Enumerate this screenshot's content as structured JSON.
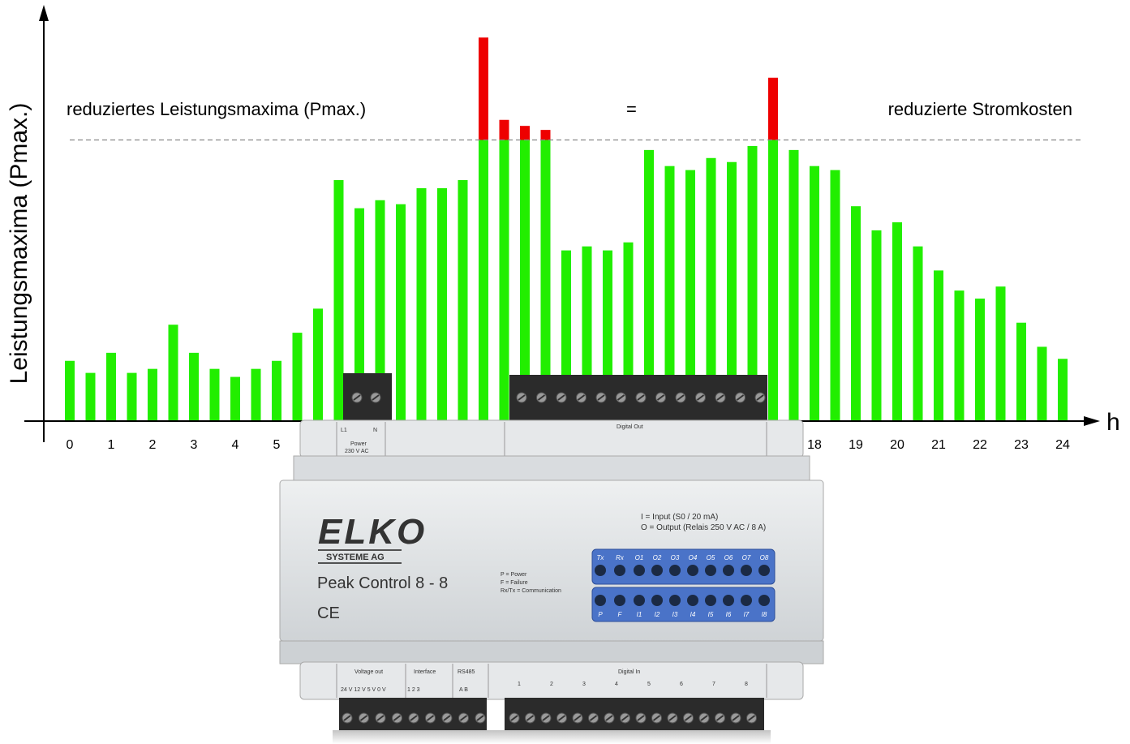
{
  "chart_data": {
    "type": "bar",
    "ylabel": "Leistungsmaxima (Pmax.)",
    "xlabel": "h",
    "annotation_left": "reduziertes Leistungsmaxima (Pmax.)",
    "annotation_equals": "=",
    "annotation_right": "reduzierte Stromkosten",
    "x_ticks": [
      "0",
      "1",
      "2",
      "3",
      "4",
      "5",
      "6",
      "7",
      "8",
      "9",
      "10",
      "11",
      "12",
      "13",
      "14",
      "15",
      "16",
      "17",
      "18",
      "19",
      "20",
      "21",
      "22",
      "23",
      "24"
    ],
    "x_range": [
      0,
      24
    ],
    "ylim": [
      0,
      100
    ],
    "threshold": 70,
    "grid": false,
    "colors": {
      "below": "#22ee00",
      "above": "#ee0000",
      "threshold_line": "#888888"
    },
    "bars": [
      {
        "x": 0,
        "y": 15
      },
      {
        "x": 0.5,
        "y": 12
      },
      {
        "x": 1,
        "y": 17
      },
      {
        "x": 1.5,
        "y": 12
      },
      {
        "x": 2,
        "y": 13
      },
      {
        "x": 2.5,
        "y": 24
      },
      {
        "x": 3,
        "y": 17
      },
      {
        "x": 3.5,
        "y": 13
      },
      {
        "x": 4,
        "y": 11
      },
      {
        "x": 4.5,
        "y": 13
      },
      {
        "x": 5,
        "y": 15
      },
      {
        "x": 5.5,
        "y": 22
      },
      {
        "x": 6,
        "y": 28
      },
      {
        "x": 6.5,
        "y": 60
      },
      {
        "x": 7,
        "y": 53
      },
      {
        "x": 7.5,
        "y": 55
      },
      {
        "x": 8,
        "y": 54
      },
      {
        "x": 8.5,
        "y": 58
      },
      {
        "x": 9,
        "y": 58
      },
      {
        "x": 9.5,
        "y": 60
      },
      {
        "x": 10,
        "y": 95.5
      },
      {
        "x": 10.5,
        "y": 75
      },
      {
        "x": 11,
        "y": 73.5
      },
      {
        "x": 11.5,
        "y": 72.5
      },
      {
        "x": 12,
        "y": 42.5
      },
      {
        "x": 12.5,
        "y": 43.5
      },
      {
        "x": 13,
        "y": 42.5
      },
      {
        "x": 13.5,
        "y": 44.5
      },
      {
        "x": 14,
        "y": 67.5
      },
      {
        "x": 14.5,
        "y": 63.5
      },
      {
        "x": 15,
        "y": 62.5
      },
      {
        "x": 15.5,
        "y": 65.5
      },
      {
        "x": 16,
        "y": 64.5
      },
      {
        "x": 16.5,
        "y": 68.5
      },
      {
        "x": 17,
        "y": 85.5
      },
      {
        "x": 17.5,
        "y": 67.5
      },
      {
        "x": 18,
        "y": 63.5
      },
      {
        "x": 18.5,
        "y": 62.5
      },
      {
        "x": 19,
        "y": 53.5
      },
      {
        "x": 19.5,
        "y": 47.5
      },
      {
        "x": 20,
        "y": 49.5
      },
      {
        "x": 20.5,
        "y": 43.5
      },
      {
        "x": 21,
        "y": 37.5
      },
      {
        "x": 21.5,
        "y": 32.5
      },
      {
        "x": 22,
        "y": 30.5
      },
      {
        "x": 22.5,
        "y": 33.5
      },
      {
        "x": 23,
        "y": 24.5
      },
      {
        "x": 23.5,
        "y": 18.5
      },
      {
        "x": 24,
        "y": 15.5
      }
    ]
  },
  "device": {
    "brand": "ELKO",
    "subbrand": "SYSTEME AG",
    "model": "Peak Control 8 - 8",
    "ce_mark": "CE",
    "legend_left": [
      "P = Power",
      "F = Failure",
      "Rx/Tx = Communication"
    ],
    "legend_right": [
      "I  = Input (S0 / 20 mA)",
      "O = Output (Relais 250 V AC / 8 A)"
    ],
    "led_top_labels": [
      "Tx",
      "Rx",
      "O1",
      "O2",
      "O3",
      "O4",
      "O5",
      "O6",
      "O7",
      "O8"
    ],
    "led_bottom_labels": [
      "P",
      "F",
      "I1",
      "I2",
      "I3",
      "I4",
      "I5",
      "I6",
      "I7",
      "I8"
    ],
    "top_terminal_labels": {
      "left_top": [
        "L1",
        "N"
      ],
      "power": "Power",
      "power_rating": "230 V AC",
      "digital_out": "Digital Out"
    },
    "bottom_terminal_labels": {
      "voltage_out": "Voltage out",
      "voltage_values": "24 V 12 V  5 V   0 V",
      "interface": "Interface",
      "interface_values": "1      2      3",
      "rs485": "RS485",
      "rs485_values": "A      B",
      "digital_in": "Digital In",
      "digital_in_numbers": [
        "1",
        "2",
        "3",
        "4",
        "5",
        "6",
        "7",
        "8"
      ]
    },
    "colors": {
      "housing": "#e2e5e7",
      "led_panel": "#4a73c8",
      "terminal": "#2b2b2b"
    }
  }
}
